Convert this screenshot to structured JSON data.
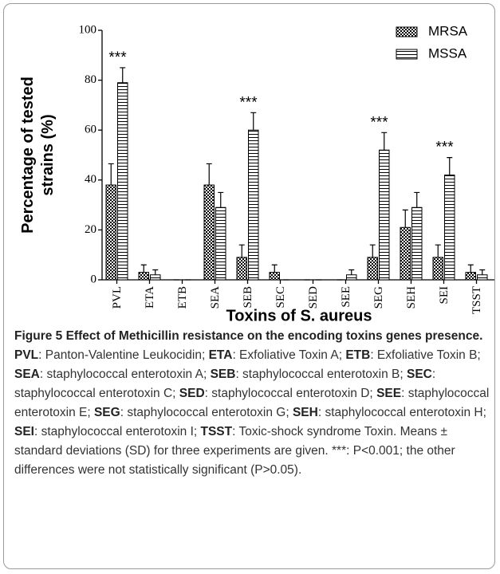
{
  "chart_data": {
    "type": "bar",
    "xlabel": "Toxins of S. aureus",
    "ylabel": [
      "Percentage of tested",
      "strains (%)"
    ],
    "categories": [
      "PVL",
      "ETA",
      "ETB",
      "SEA",
      "SEB",
      "SEC",
      "SED",
      "SEE",
      "SEG",
      "SEH",
      "SEI",
      "TSST"
    ],
    "series": [
      {
        "name": "MRSA",
        "pattern": "checker",
        "color": "#000000",
        "values": [
          38,
          3,
          0,
          38,
          9,
          3,
          0,
          0,
          9,
          21,
          9,
          3
        ],
        "error": [
          8.5,
          3,
          0,
          8.5,
          5,
          3,
          0,
          0,
          5,
          7,
          5,
          3
        ]
      },
      {
        "name": "MSSA",
        "pattern": "hlines",
        "color": "#000000",
        "values": [
          79,
          2,
          0,
          29,
          60,
          0,
          0,
          2,
          52,
          29,
          42,
          2
        ],
        "error": [
          6,
          2,
          0,
          6,
          7,
          0,
          0,
          2,
          7,
          6,
          7,
          2
        ]
      }
    ],
    "annotations": [
      {
        "text": "***",
        "category": "PVL"
      },
      {
        "text": "***",
        "category": "SEB"
      },
      {
        "text": "***",
        "category": "SEG"
      },
      {
        "text": "***",
        "category": "SEI"
      }
    ],
    "ylim": [
      0,
      100
    ],
    "yticks": [
      0,
      20,
      40,
      60,
      80,
      100
    ],
    "legend": "top-right"
  },
  "caption": {
    "title": "Figure 5 Effect of Methicillin resistance on the encoding toxins genes presence.",
    "items": [
      {
        "term": "PVL",
        "text": ": Panton-Valentine Leukocidin;"
      },
      {
        "term": "ETA",
        "text": ": Exfoliative Toxin A;"
      },
      {
        "term": "ETB",
        "text": ": Exfoliative Toxin B;"
      },
      {
        "term": "SEA",
        "text": ": staphylococcal enterotoxin A;"
      },
      {
        "term": "SEB",
        "text": ": staphylococcal enterotoxin B;"
      },
      {
        "term": "SEC",
        "text": ": staphylococcal enterotoxin C;"
      },
      {
        "term": "SED",
        "text": ": staphylococcal enterotoxin D;"
      },
      {
        "term": "SEE",
        "text": ": staphylococcal enterotoxin E;"
      },
      {
        "term": "SEG",
        "text": ": staphylococcal enterotoxin G;"
      },
      {
        "term": "SEH",
        "text": ": staphylococcal enterotoxin H;"
      },
      {
        "term": "SEI",
        "text": ": staphylococcal enterotoxin I;"
      },
      {
        "term": "TSST",
        "text": ": Toxic-shock syndrome Toxin."
      }
    ],
    "tail": "Means ± standard deviations (SD) for three experiments are given. ***: P˂0.001; the other differences were not statistically significant (P˃0.05)."
  }
}
